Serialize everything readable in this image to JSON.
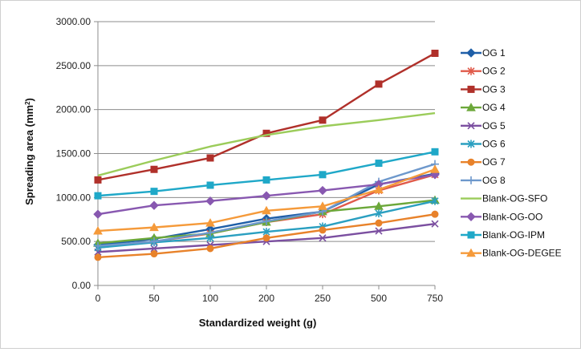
{
  "chart_data": {
    "type": "line",
    "title": "",
    "xlabel": "Standardized weight (g)",
    "ylabel": "Spreading area (mm²)",
    "ylabel_base": "Spreading area (mm",
    "ylabel_sup": "2",
    "ylabel_end": ")",
    "categories": [
      "0",
      "50",
      "100",
      "200",
      "250",
      "500",
      "750"
    ],
    "ylim": [
      0,
      3000
    ],
    "yticks": [
      "0.00",
      "500.00",
      "1000.00",
      "1500.00",
      "2000.00",
      "2500.00",
      "3000.00"
    ],
    "ytick_values": [
      0,
      500,
      1000,
      1500,
      2000,
      2500,
      3000
    ],
    "grid": true,
    "legend_position": "right",
    "series": [
      {
        "name": "OG 1",
        "color": "#1f5fa8",
        "marker": "diamond",
        "values": [
          460,
          530,
          640,
          760,
          840,
          1150,
          1270
        ]
      },
      {
        "name": "OG 2",
        "color": "#e05a4a",
        "marker": "star",
        "values": [
          430,
          500,
          590,
          720,
          810,
          1080,
          1260
        ]
      },
      {
        "name": "OG 3",
        "color": "#b0302a",
        "marker": "square",
        "values": [
          1200,
          1320,
          1450,
          1730,
          1880,
          2290,
          2640
        ]
      },
      {
        "name": "OG 4",
        "color": "#6ca83a",
        "marker": "triangle",
        "values": [
          480,
          540,
          590,
          720,
          840,
          900,
          970
        ]
      },
      {
        "name": "OG 5",
        "color": "#7b4fa0",
        "marker": "x",
        "values": [
          380,
          420,
          460,
          500,
          540,
          620,
          700
        ]
      },
      {
        "name": "OG 6",
        "color": "#2a9fc0",
        "marker": "star",
        "values": [
          430,
          490,
          540,
          610,
          670,
          820,
          960
        ]
      },
      {
        "name": "OG 7",
        "color": "#e8822a",
        "marker": "circle",
        "values": [
          320,
          360,
          420,
          540,
          630,
          710,
          810
        ]
      },
      {
        "name": "OG 8",
        "color": "#6d98cc",
        "marker": "plus",
        "values": [
          450,
          500,
          600,
          730,
          840,
          1180,
          1380
        ]
      },
      {
        "name": "Blank-OG-SFO",
        "color": "#9bcc5a",
        "marker": "none",
        "values": [
          1250,
          1420,
          1580,
          1710,
          1810,
          1880,
          1960
        ]
      },
      {
        "name": "Blank-OG-OO",
        "color": "#8858b0",
        "marker": "diamond",
        "values": [
          810,
          910,
          960,
          1020,
          1080,
          1150,
          1260
        ]
      },
      {
        "name": "Blank-OG-IPM",
        "color": "#1fa8c8",
        "marker": "square",
        "values": [
          1020,
          1070,
          1140,
          1200,
          1260,
          1390,
          1520
        ]
      },
      {
        "name": "Blank-OG-DEGEE",
        "color": "#f59a3a",
        "marker": "triangle",
        "values": [
          620,
          660,
          710,
          850,
          900,
          1090,
          1320
        ]
      }
    ]
  }
}
